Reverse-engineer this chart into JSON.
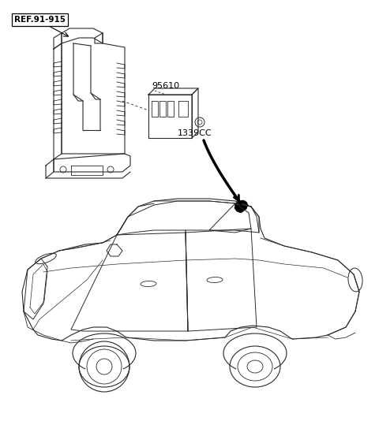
{
  "background_color": "#ffffff",
  "line_color": "#2a2a2a",
  "label_ref": "REF.91-915",
  "label_95610": "95610",
  "label_1339cc": "1339CC",
  "fig_width": 4.8,
  "fig_height": 5.34,
  "dpi": 100
}
